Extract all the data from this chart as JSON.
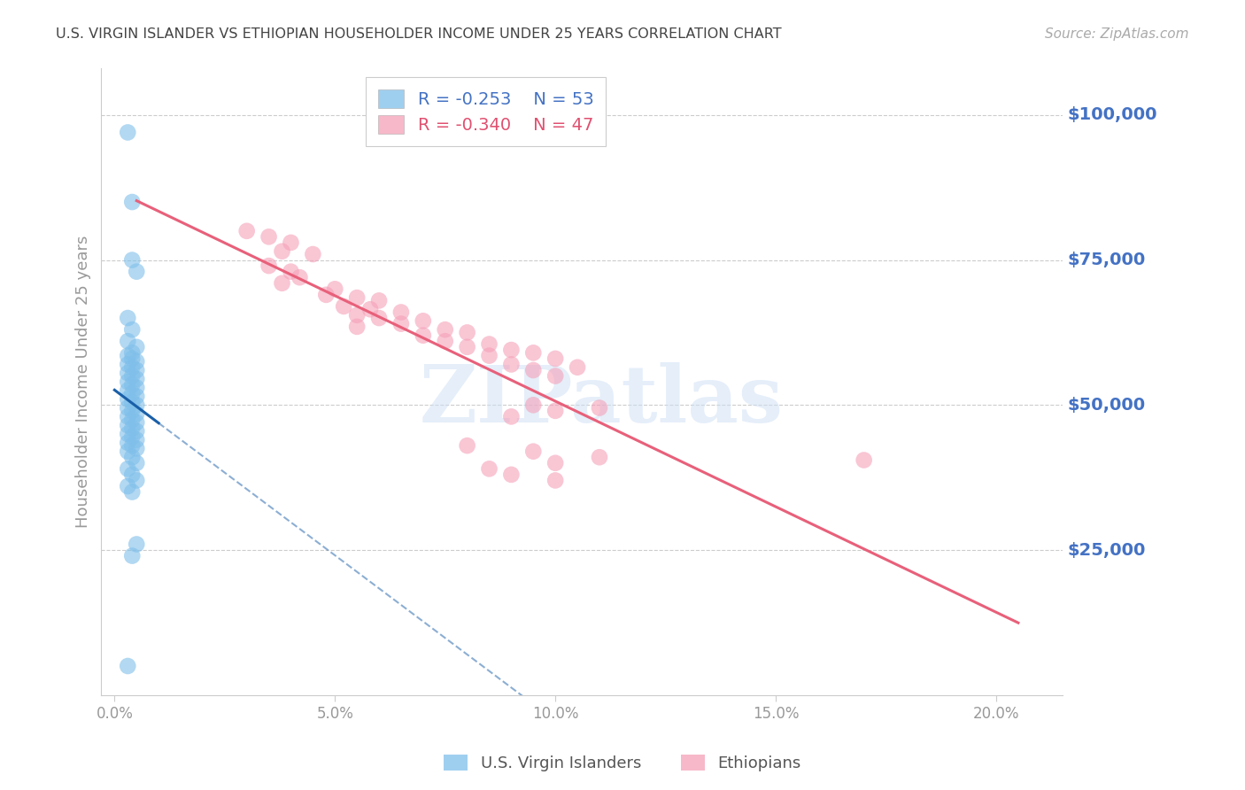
{
  "title": "U.S. VIRGIN ISLANDER VS ETHIOPIAN HOUSEHOLDER INCOME UNDER 25 YEARS CORRELATION CHART",
  "source": "Source: ZipAtlas.com",
  "ylabel": "Householder Income Under 25 years",
  "xlabel_vals": [
    0.0,
    0.05,
    0.1,
    0.15,
    0.2
  ],
  "xlabel_ticks": [
    "0.0%",
    "5.0%",
    "10.0%",
    "15.0%",
    "20.0%"
  ],
  "ylabel_ticks": [
    25000,
    50000,
    75000,
    100000
  ],
  "ylabel_labels": [
    "$25,000",
    "$50,000",
    "$75,000",
    "$100,000"
  ],
  "ylim": [
    0,
    108000
  ],
  "xlim": [
    -0.003,
    0.215
  ],
  "legend_blue_r": "-0.253",
  "legend_blue_n": "53",
  "legend_pink_r": "-0.340",
  "legend_pink_n": "47",
  "blue_color": "#7fbfea",
  "pink_color": "#f5a0b8",
  "blue_line_color": "#1a5fa8",
  "pink_line_color": "#e8607a",
  "blue_scatter": [
    [
      0.003,
      97000
    ],
    [
      0.004,
      85000
    ],
    [
      0.004,
      75000
    ],
    [
      0.005,
      73000
    ],
    [
      0.003,
      65000
    ],
    [
      0.004,
      63000
    ],
    [
      0.003,
      61000
    ],
    [
      0.005,
      60000
    ],
    [
      0.004,
      59000
    ],
    [
      0.003,
      58500
    ],
    [
      0.004,
      58000
    ],
    [
      0.005,
      57500
    ],
    [
      0.003,
      57000
    ],
    [
      0.004,
      56500
    ],
    [
      0.005,
      56000
    ],
    [
      0.003,
      55500
    ],
    [
      0.004,
      55000
    ],
    [
      0.005,
      54500
    ],
    [
      0.003,
      54000
    ],
    [
      0.004,
      53500
    ],
    [
      0.005,
      53000
    ],
    [
      0.003,
      52500
    ],
    [
      0.004,
      52000
    ],
    [
      0.005,
      51500
    ],
    [
      0.003,
      51000
    ],
    [
      0.004,
      50500
    ],
    [
      0.005,
      50000
    ],
    [
      0.003,
      49500
    ],
    [
      0.004,
      49000
    ],
    [
      0.005,
      48500
    ],
    [
      0.003,
      48000
    ],
    [
      0.004,
      47500
    ],
    [
      0.005,
      47000
    ],
    [
      0.003,
      46500
    ],
    [
      0.004,
      46000
    ],
    [
      0.005,
      45500
    ],
    [
      0.003,
      45000
    ],
    [
      0.004,
      44500
    ],
    [
      0.005,
      44000
    ],
    [
      0.003,
      43500
    ],
    [
      0.004,
      43000
    ],
    [
      0.005,
      42500
    ],
    [
      0.003,
      42000
    ],
    [
      0.004,
      41000
    ],
    [
      0.005,
      40000
    ],
    [
      0.003,
      39000
    ],
    [
      0.004,
      38000
    ],
    [
      0.005,
      37000
    ],
    [
      0.003,
      36000
    ],
    [
      0.004,
      35000
    ],
    [
      0.005,
      26000
    ],
    [
      0.004,
      24000
    ],
    [
      0.003,
      5000
    ]
  ],
  "pink_scatter": [
    [
      0.03,
      80000
    ],
    [
      0.035,
      79000
    ],
    [
      0.04,
      78000
    ],
    [
      0.038,
      76500
    ],
    [
      0.045,
      76000
    ],
    [
      0.035,
      74000
    ],
    [
      0.04,
      73000
    ],
    [
      0.042,
      72000
    ],
    [
      0.038,
      71000
    ],
    [
      0.05,
      70000
    ],
    [
      0.048,
      69000
    ],
    [
      0.055,
      68500
    ],
    [
      0.06,
      68000
    ],
    [
      0.052,
      67000
    ],
    [
      0.058,
      66500
    ],
    [
      0.065,
      66000
    ],
    [
      0.055,
      65500
    ],
    [
      0.06,
      65000
    ],
    [
      0.07,
      64500
    ],
    [
      0.065,
      64000
    ],
    [
      0.055,
      63500
    ],
    [
      0.075,
      63000
    ],
    [
      0.08,
      62500
    ],
    [
      0.07,
      62000
    ],
    [
      0.075,
      61000
    ],
    [
      0.085,
      60500
    ],
    [
      0.08,
      60000
    ],
    [
      0.09,
      59500
    ],
    [
      0.095,
      59000
    ],
    [
      0.085,
      58500
    ],
    [
      0.1,
      58000
    ],
    [
      0.09,
      57000
    ],
    [
      0.105,
      56500
    ],
    [
      0.095,
      56000
    ],
    [
      0.1,
      55000
    ],
    [
      0.095,
      50000
    ],
    [
      0.11,
      49500
    ],
    [
      0.1,
      49000
    ],
    [
      0.09,
      48000
    ],
    [
      0.08,
      43000
    ],
    [
      0.095,
      42000
    ],
    [
      0.11,
      41000
    ],
    [
      0.1,
      40000
    ],
    [
      0.085,
      39000
    ],
    [
      0.09,
      38000
    ],
    [
      0.1,
      37000
    ],
    [
      0.17,
      40500
    ]
  ],
  "watermark_text": "ZIPatlas",
  "tick_color": "#999999",
  "axis_label_color": "#4472c4",
  "title_color": "#444444"
}
